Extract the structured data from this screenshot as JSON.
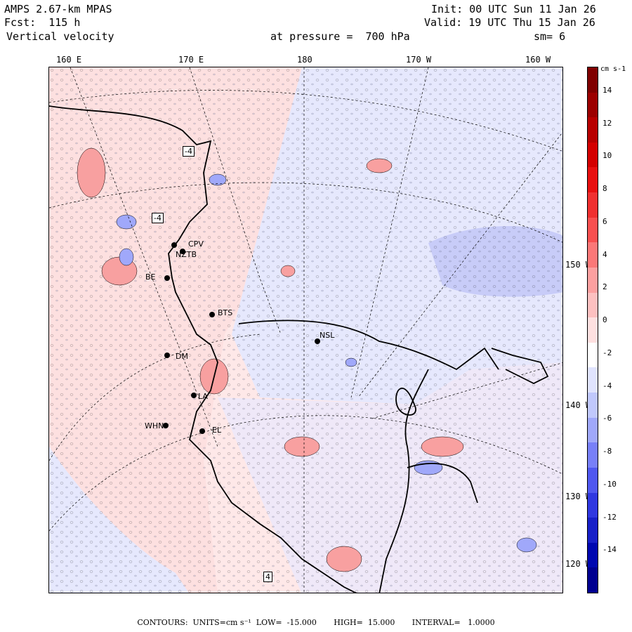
{
  "header": {
    "model": "AMPS 2.67-km MPAS",
    "forecast": "Fcst:  115 h",
    "field": "Vertical velocity",
    "init": "Init: 00 UTC Sun 11 Jan 26",
    "valid": "Valid: 19 UTC Thu 15 Jan 26",
    "pressure": "at pressure =  700 hPa",
    "smoothing": "sm= 6"
  },
  "top_axis_labels": [
    "160 E",
    "170 E",
    "180",
    "170 W",
    "160 W"
  ],
  "right_axis_labels": [
    "150 W",
    "140 W",
    "130 W",
    "120 W"
  ],
  "colorbar": {
    "units": "cm s-1",
    "ticks": [
      "14",
      "12",
      "10",
      "8",
      "6",
      "4",
      "2",
      "0",
      "-2",
      "-4",
      "-6",
      "-8",
      "-10",
      "-12",
      "-14"
    ],
    "colors": [
      "#800000",
      "#9c0000",
      "#b80000",
      "#d40000",
      "#e81010",
      "#f03030",
      "#f85050",
      "#fb7878",
      "#fca0a0",
      "#fdc0c0",
      "#fee0e0",
      "#ffffff",
      "#e0e4fe",
      "#c0c8fc",
      "#a0a8fa",
      "#7880f8",
      "#5058f0",
      "#3038e0",
      "#1820c8",
      "#0008b0",
      "#000090"
    ]
  },
  "stations": [
    {
      "code": "-4"
    },
    {
      "code": "-4"
    },
    {
      "code": "CPV"
    },
    {
      "code": "NZTB"
    },
    {
      "code": "BE"
    },
    {
      "code": "BTS"
    },
    {
      "code": "NSL"
    },
    {
      "code": "DM"
    },
    {
      "code": "LA"
    },
    {
      "code": "WHN"
    },
    {
      "code": "EL"
    },
    {
      "code": "4"
    }
  ],
  "footer": "CONTOURS:  UNITS=cm s⁻¹  LOW=  -15.000       HIGH=  15.000       INTERVAL=   1.0000"
}
